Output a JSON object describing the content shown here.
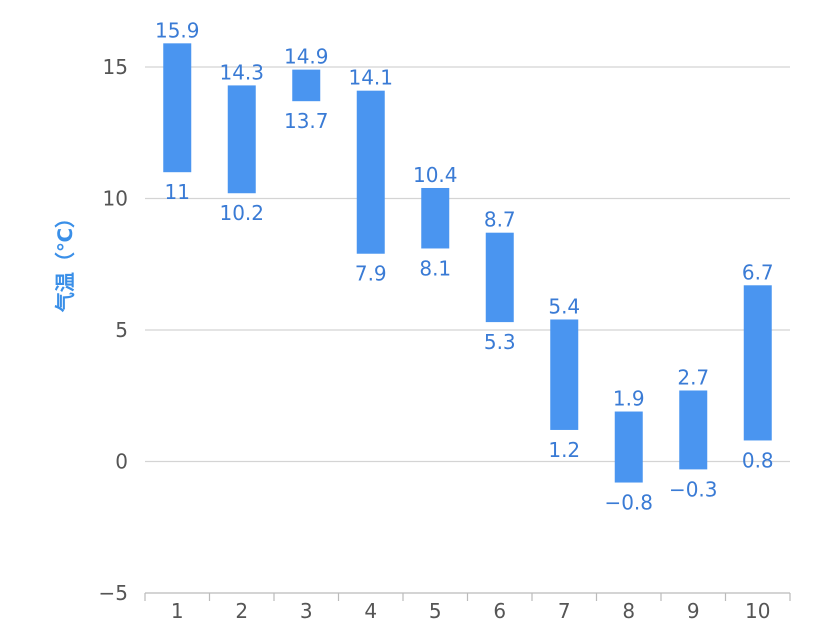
{
  "chart_data": {
    "type": "bar",
    "subtype": "floating-range",
    "title": "",
    "xlabel": "",
    "ylabel": "气温（℃）",
    "categories": [
      "1",
      "2",
      "3",
      "4",
      "5",
      "6",
      "7",
      "8",
      "9",
      "10"
    ],
    "series": [
      {
        "high": [
          15.9,
          14.3,
          14.9,
          14.1,
          10.4,
          8.7,
          5.4,
          1.9,
          2.7,
          6.7
        ],
        "low": [
          11,
          10.2,
          13.7,
          7.9,
          8.1,
          5.3,
          1.2,
          -0.8,
          -0.3,
          0.8
        ]
      }
    ],
    "ylim": [
      -5,
      15
    ],
    "yticks": [
      -5,
      0,
      5,
      10,
      15
    ],
    "grid": true,
    "colors": {
      "bar": "#4a95f0",
      "label": "#3a7bd5",
      "ylabel": "#3a8fe8"
    }
  }
}
